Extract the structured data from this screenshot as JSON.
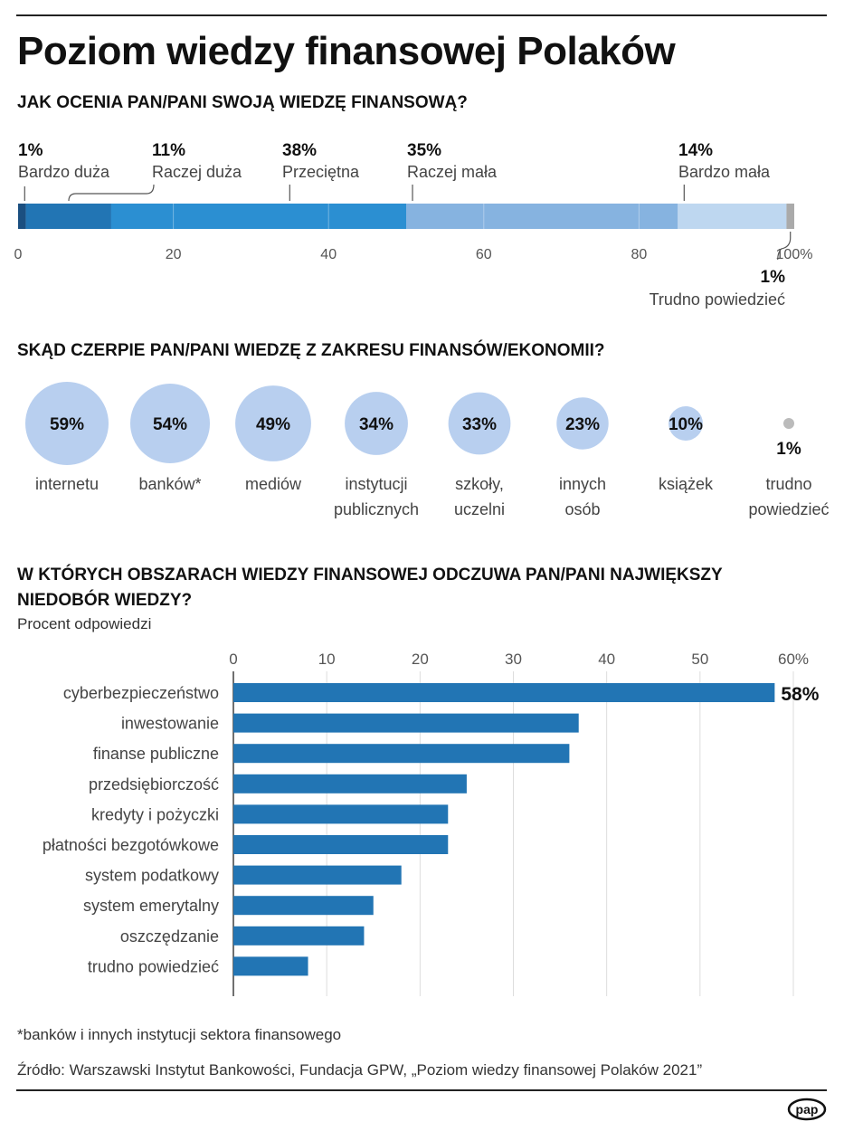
{
  "title": "Poziom wiedzy finansowej Polaków",
  "footnote": "*banków i innych instytucji sektora finansowego",
  "source": "Źródło: Warszawski Instytut Bankowości, Fundacja GPW, „Poziom wiedzy finansowej Polaków 2021”",
  "logo_text": "pap",
  "chart_data": [
    {
      "type": "bar",
      "stacked": true,
      "title": "JAK OCENIA PAN/PANI SWOJĄ WIEDZĘ FINANSOWĄ?",
      "xlim": [
        0,
        100
      ],
      "x_ticks": [
        "0",
        "20",
        "40",
        "60",
        "80",
        "100%"
      ],
      "tick_values": [
        0,
        20,
        40,
        60,
        80,
        100
      ],
      "segments": [
        {
          "label": "Bardzo duża",
          "value": 1,
          "value_label": "1%",
          "color": "#1b4f80"
        },
        {
          "label": "Raczej duża",
          "value": 11,
          "value_label": "11%",
          "color": "#2275b4"
        },
        {
          "label": "Przeciętna",
          "value": 38,
          "value_label": "38%",
          "color": "#2b8fd2"
        },
        {
          "label": "Raczej mała",
          "value": 35,
          "value_label": "35%",
          "color": "#86b3e0"
        },
        {
          "label": "Bardzo mała",
          "value": 14,
          "value_label": "14%",
          "color": "#bed7f0"
        },
        {
          "label": "Trudno powiedzieć",
          "value": 1,
          "value_label": "1%",
          "color": "#aaaaaa"
        }
      ]
    },
    {
      "type": "bubble",
      "title": "SKĄD CZERPIE PAN/PANI WIEDZĘ Z ZAKRESU FINANSÓW/EKONOMII?",
      "bubble_color": "#b8cfef",
      "other_color": "#bbbbbb",
      "items": [
        {
          "label_lines": [
            "internetu"
          ],
          "value": 59,
          "value_label": "59%"
        },
        {
          "label_lines": [
            "banków*"
          ],
          "value": 54,
          "value_label": "54%"
        },
        {
          "label_lines": [
            "mediów"
          ],
          "value": 49,
          "value_label": "49%"
        },
        {
          "label_lines": [
            "instytucji",
            "publicznych"
          ],
          "value": 34,
          "value_label": "34%"
        },
        {
          "label_lines": [
            "szkoły,",
            "uczelni"
          ],
          "value": 33,
          "value_label": "33%"
        },
        {
          "label_lines": [
            "innych",
            "osób"
          ],
          "value": 23,
          "value_label": "23%"
        },
        {
          "label_lines": [
            "książek"
          ],
          "value": 10,
          "value_label": "10%"
        },
        {
          "label_lines": [
            "trudno",
            "powiedzieć"
          ],
          "value": 1,
          "value_label": "1%"
        }
      ]
    },
    {
      "type": "bar",
      "orientation": "horizontal",
      "title": "W KTÓRYCH OBSZARACH WIEDZY FINANSOWEJ ODCZUWA PAN/PANI NAJWIĘKSZY NIEDOBÓR WIEDZY?",
      "subtitle": "Procent odpowiedzi",
      "xlim": [
        0,
        60
      ],
      "x_ticks": [
        "0",
        "10",
        "20",
        "30",
        "40",
        "50",
        "60%"
      ],
      "tick_values": [
        0,
        10,
        20,
        30,
        40,
        50,
        60
      ],
      "bar_color": "#2275b4",
      "categories": [
        "cyberbezpieczeństwo",
        "inwestowanie",
        "finanse publiczne",
        "przedsiębiorczość",
        "kredyty i pożyczki",
        "płatności bezgotówkowe",
        "system podatkowy",
        "system emerytalny",
        "oszczędzanie",
        "trudno powiedzieć"
      ],
      "values": [
        58,
        37,
        36,
        25,
        23,
        23,
        18,
        15,
        14,
        8
      ],
      "value_labels": [
        "58%",
        "",
        "",
        "",
        "",
        "",
        "",
        "",
        "",
        ""
      ]
    }
  ]
}
